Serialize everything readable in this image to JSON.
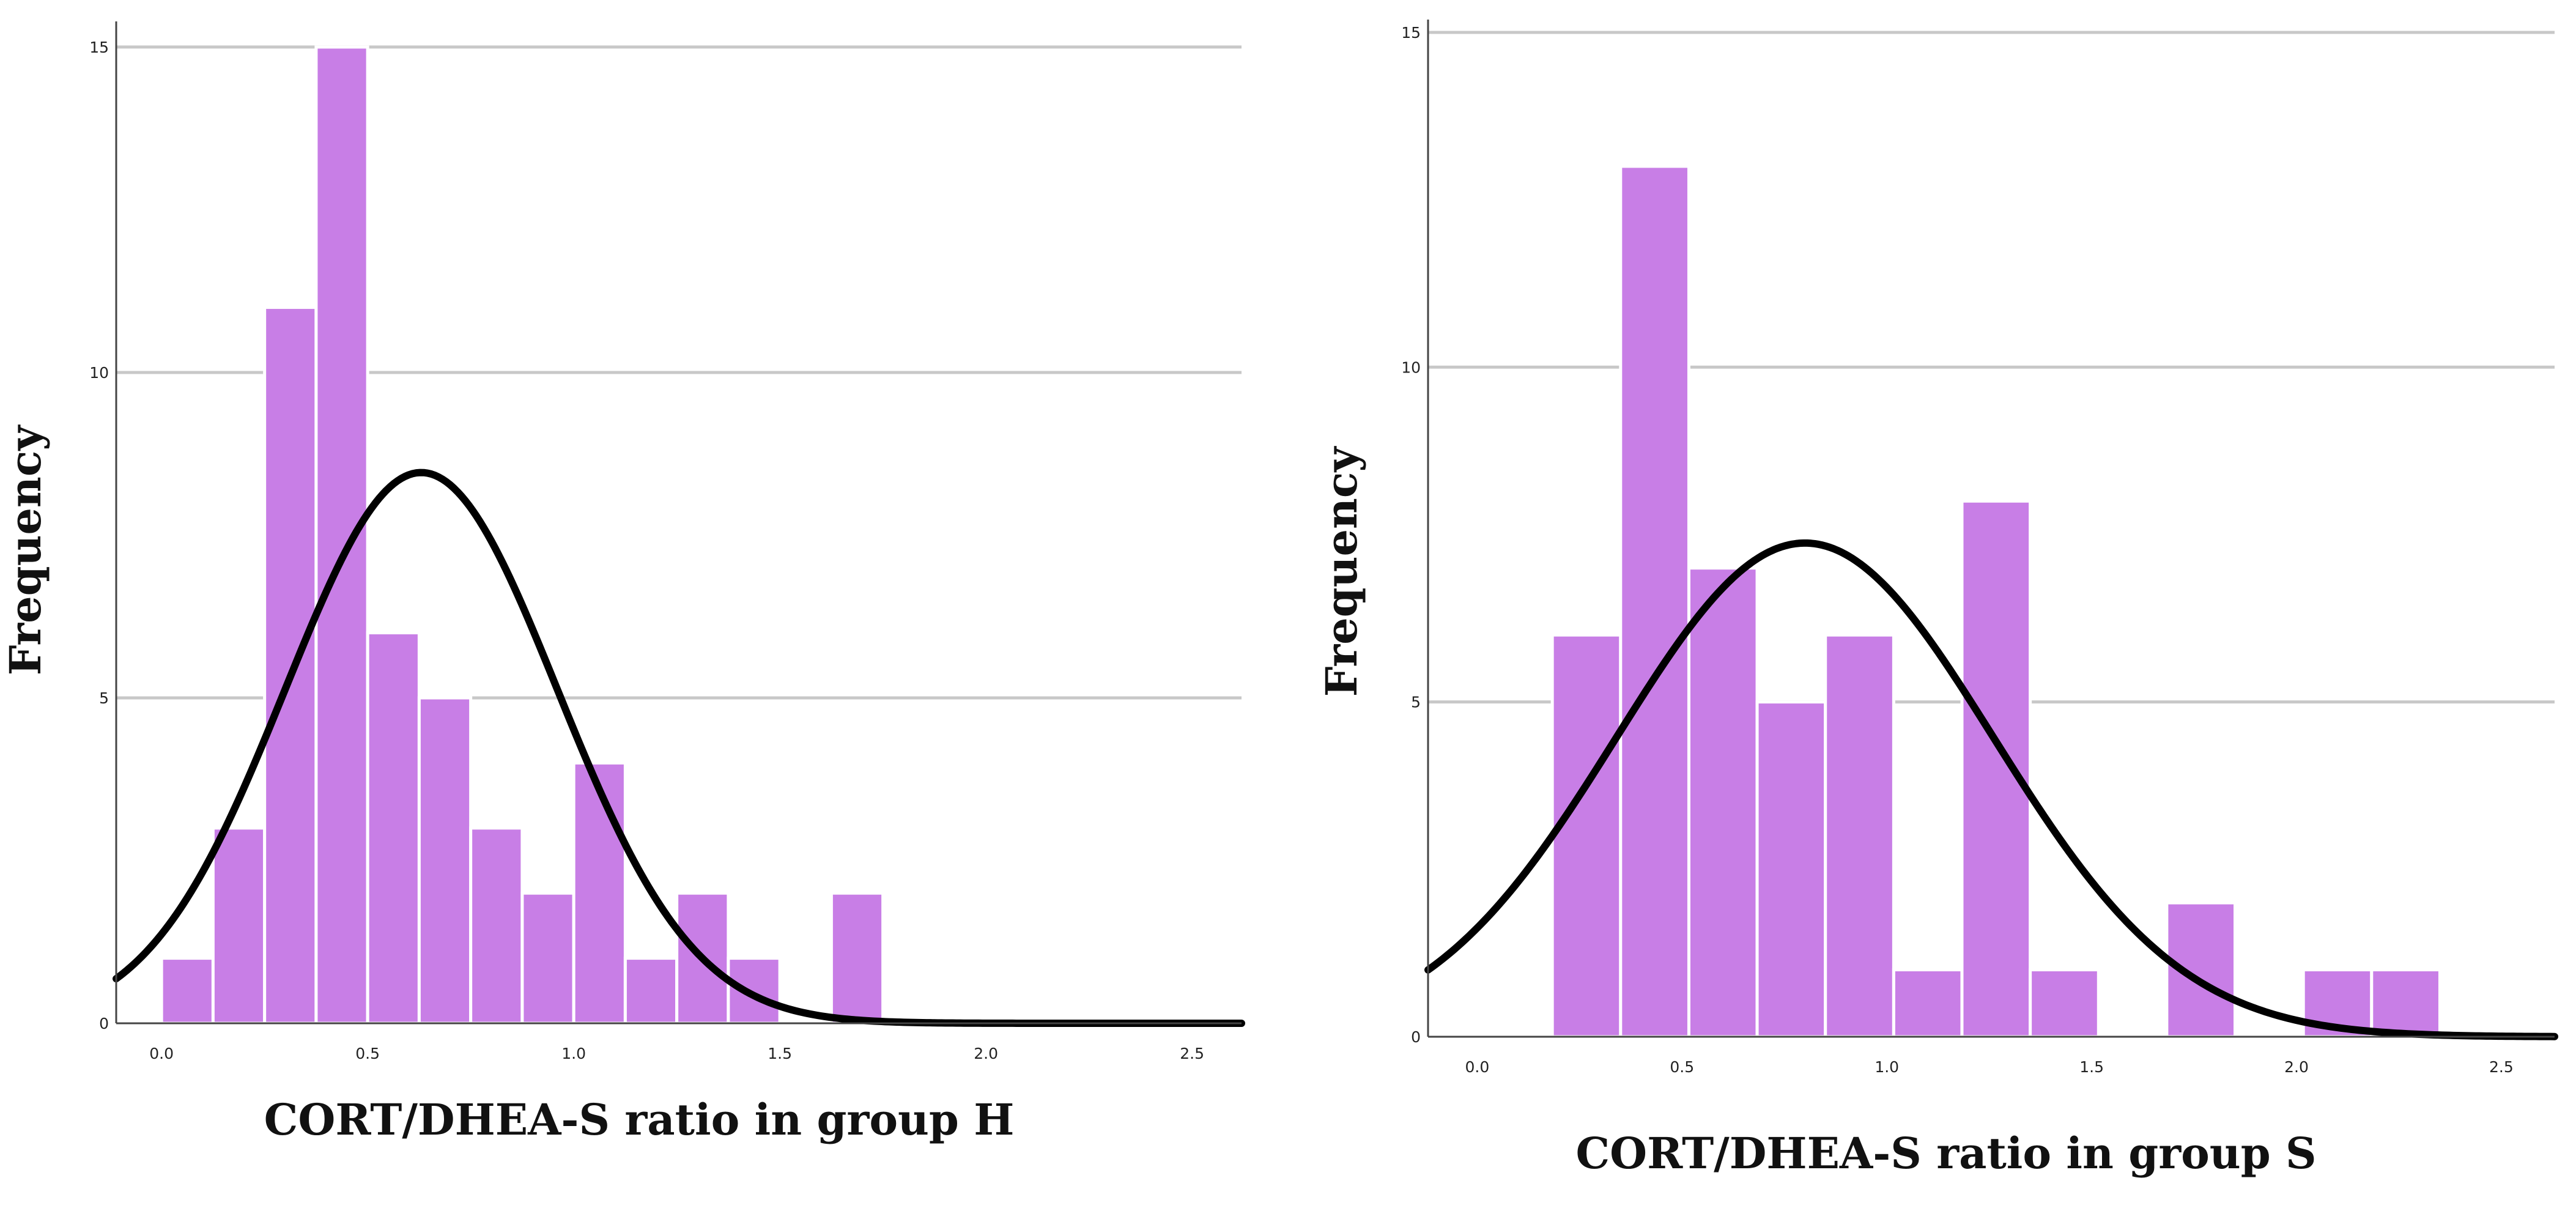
{
  "chart_data": [
    {
      "type": "bar",
      "title": "",
      "xlabel": "CORT/DHEA-S ratio in group H",
      "ylabel": "Frequency",
      "bin_width": 0.125,
      "bins": [
        {
          "x0": 0.0,
          "x1": 0.125,
          "value": 1
        },
        {
          "x0": 0.125,
          "x1": 0.25,
          "value": 3
        },
        {
          "x0": 0.25,
          "x1": 0.375,
          "value": 11
        },
        {
          "x0": 0.375,
          "x1": 0.5,
          "value": 15
        },
        {
          "x0": 0.5,
          "x1": 0.625,
          "value": 6
        },
        {
          "x0": 0.625,
          "x1": 0.75,
          "value": 5
        },
        {
          "x0": 0.75,
          "x1": 0.875,
          "value": 3
        },
        {
          "x0": 0.875,
          "x1": 1.0,
          "value": 2
        },
        {
          "x0": 1.0,
          "x1": 1.125,
          "value": 4
        },
        {
          "x0": 1.125,
          "x1": 1.25,
          "value": 1
        },
        {
          "x0": 1.25,
          "x1": 1.375,
          "value": 2
        },
        {
          "x0": 1.375,
          "x1": 1.5,
          "value": 1
        },
        {
          "x0": 1.625,
          "x1": 1.75,
          "value": 2
        }
      ],
      "normal_curve": {
        "mean": 0.63,
        "sd": 0.33,
        "n": 56
      },
      "xlim": [
        -0.11,
        2.62
      ],
      "ylim": [
        0,
        15.3
      ],
      "x_ticks": [
        {
          "value": 0.0,
          "label": "0.0"
        },
        {
          "value": 0.5,
          "label": "0.5"
        },
        {
          "value": 1.0,
          "label": "1.0"
        },
        {
          "value": 1.5,
          "label": "1.5"
        },
        {
          "value": 2.0,
          "label": "2.0"
        },
        {
          "value": 2.5,
          "label": "2.5"
        }
      ],
      "y_ticks": [
        {
          "value": 0,
          "label": "0"
        },
        {
          "value": 5,
          "label": "5"
        },
        {
          "value": 10,
          "label": "10"
        },
        {
          "value": 15,
          "label": "15"
        }
      ],
      "grid": true,
      "colors": {
        "bar_fill": "#c87ee6",
        "bar_edge": "#ffffff",
        "curve": "#000000",
        "grid": "#c8c8c8"
      }
    },
    {
      "type": "bar",
      "title": "",
      "xlabel": "CORT/DHEA-S ratio in group S",
      "ylabel": "Frequency",
      "bin_width": 0.1667,
      "bins": [
        {
          "x0": 0.1833,
          "x1": 0.35,
          "value": 6
        },
        {
          "x0": 0.35,
          "x1": 0.5167,
          "value": 13
        },
        {
          "x0": 0.5167,
          "x1": 0.6833,
          "value": 7
        },
        {
          "x0": 0.6833,
          "x1": 0.85,
          "value": 5
        },
        {
          "x0": 0.85,
          "x1": 1.0167,
          "value": 6
        },
        {
          "x0": 1.0167,
          "x1": 1.1833,
          "value": 1
        },
        {
          "x0": 1.1833,
          "x1": 1.35,
          "value": 8
        },
        {
          "x0": 1.35,
          "x1": 1.5167,
          "value": 1
        },
        {
          "x0": 1.6833,
          "x1": 1.85,
          "value": 2
        },
        {
          "x0": 2.0167,
          "x1": 2.1833,
          "value": 1
        },
        {
          "x0": 2.1833,
          "x1": 2.35,
          "value": 1
        }
      ],
      "normal_curve": {
        "mean": 0.8,
        "sd": 0.46,
        "n": 51
      },
      "xlim": [
        -0.12,
        2.63
      ],
      "ylim": [
        0,
        15.1
      ],
      "x_ticks": [
        {
          "value": 0.0,
          "label": "0.0"
        },
        {
          "value": 0.5,
          "label": "0.5"
        },
        {
          "value": 1.0,
          "label": "1.0"
        },
        {
          "value": 1.5,
          "label": "1.5"
        },
        {
          "value": 2.0,
          "label": "2.0"
        },
        {
          "value": 2.5,
          "label": "2.5"
        }
      ],
      "y_ticks": [
        {
          "value": 0,
          "label": "0"
        },
        {
          "value": 5,
          "label": "5"
        },
        {
          "value": 10,
          "label": "10"
        },
        {
          "value": 15,
          "label": "15"
        }
      ],
      "grid": true,
      "colors": {
        "bar_fill": "#c87ee6",
        "bar_edge": "#ffffff",
        "curve": "#000000",
        "grid": "#c8c8c8"
      }
    }
  ]
}
